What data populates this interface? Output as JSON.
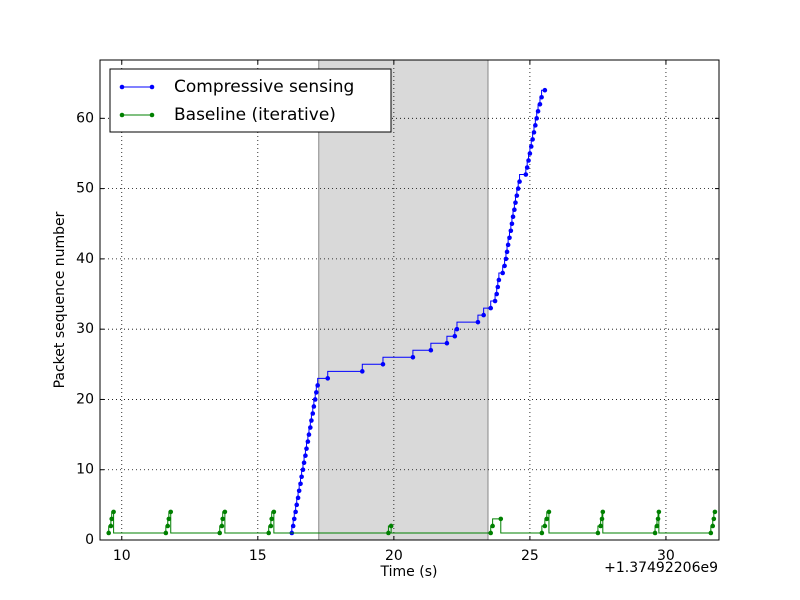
{
  "chart_data": {
    "type": "line",
    "drawstyle": "steps-pre",
    "xlabel": "Time (s)",
    "ylabel": "Packet sequence number",
    "x_offset_text": "+1.37492206e9",
    "xlim": [
      9.2,
      31.95
    ],
    "ylim": [
      0,
      68.3
    ],
    "xticks": [
      10,
      15,
      20,
      25,
      30
    ],
    "yticks": [
      0,
      10,
      20,
      30,
      40,
      50,
      60
    ],
    "grid": true,
    "legend": "upper left",
    "spans": [
      {
        "x0": 17.24,
        "x1": 23.46,
        "color": "#d9d9d9"
      }
    ],
    "series": [
      {
        "name": "Compressive sensing",
        "color": "#0000ff",
        "x": [
          16.25,
          16.3,
          16.34,
          16.39,
          16.43,
          16.48,
          16.52,
          16.57,
          16.61,
          16.66,
          16.7,
          16.75,
          16.79,
          16.84,
          16.88,
          16.93,
          16.97,
          17.02,
          17.06,
          17.11,
          17.15,
          17.2,
          17.57,
          18.84,
          19.6,
          20.7,
          21.36,
          21.95,
          22.24,
          22.32,
          23.09,
          23.3,
          23.56,
          23.72,
          23.78,
          23.82,
          23.86,
          24.0,
          24.07,
          24.12,
          24.16,
          24.2,
          24.25,
          24.3,
          24.34,
          24.38,
          24.43,
          24.47,
          24.52,
          24.57,
          24.62,
          24.85,
          24.9,
          24.95,
          25.0,
          25.05,
          25.1,
          25.15,
          25.2,
          25.25,
          25.3,
          25.37,
          25.43,
          25.55
        ],
        "values": [
          1,
          2,
          3,
          4,
          5,
          6,
          7,
          8,
          9,
          10,
          11,
          12,
          13,
          14,
          15,
          16,
          17,
          18,
          19,
          20,
          21,
          22,
          23,
          24,
          25,
          26,
          27,
          28,
          29,
          30,
          31,
          32,
          33,
          34,
          35,
          36,
          37,
          38,
          39,
          40,
          41,
          42,
          43,
          44,
          45,
          46,
          47,
          48,
          49,
          50,
          51,
          52,
          53,
          54,
          55,
          56,
          57,
          58,
          59,
          60,
          61,
          62,
          63,
          64
        ]
      },
      {
        "name": "Baseline (iterative)",
        "color": "#008000",
        "x": [
          9.52,
          9.6,
          9.63,
          9.7,
          11.62,
          11.69,
          11.73,
          11.8,
          13.6,
          13.68,
          13.71,
          13.79,
          15.4,
          15.48,
          15.51,
          15.59,
          19.8,
          19.9,
          23.56,
          23.63,
          23.93,
          25.44,
          25.55,
          25.62,
          25.7,
          27.5,
          27.6,
          27.65,
          27.68,
          29.6,
          29.67,
          29.71,
          29.74,
          31.65,
          31.72,
          31.76,
          31.8
        ],
        "values": [
          1,
          2,
          3,
          4,
          1,
          2,
          3,
          4,
          1,
          2,
          3,
          4,
          1,
          2,
          3,
          4,
          1,
          2,
          1,
          2,
          3,
          1,
          2,
          3,
          4,
          1,
          2,
          3,
          4,
          1,
          2,
          3,
          4,
          1,
          2,
          3,
          4
        ]
      }
    ]
  }
}
